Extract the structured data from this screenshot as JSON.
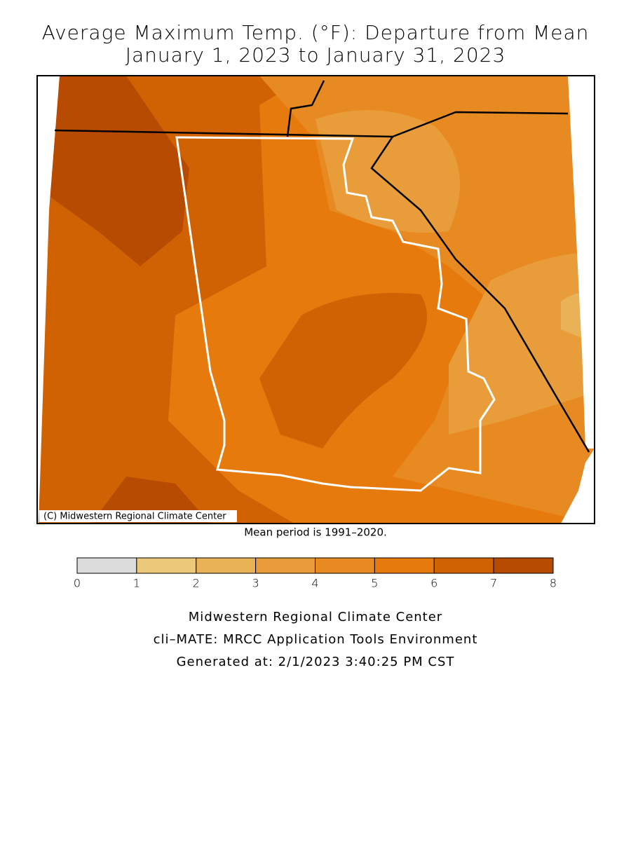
{
  "title": [
    "Average Maximum Temp. (°F): Departure from Mean",
    "January 1, 2023 to January 31, 2023"
  ],
  "map": {
    "credit": "(C) Midwestern Regional Climate Center"
  },
  "note": "Mean period is 1991–2020.",
  "legend": {
    "ticks": [
      0,
      1,
      2,
      3,
      4,
      5,
      6,
      7,
      8
    ],
    "colors": [
      "#dcdcdc",
      "#ebc87a",
      "#e9b256",
      "#e89d3a",
      "#e88a22",
      "#e77a0c",
      "#d06204",
      "#b84b02"
    ]
  },
  "footer": [
    "Midwestern Regional Climate Center",
    "cli–MATE: MRCC Application Tools Environment",
    "Generated at: 2/1/2023 3:40:25 PM CST"
  ]
}
